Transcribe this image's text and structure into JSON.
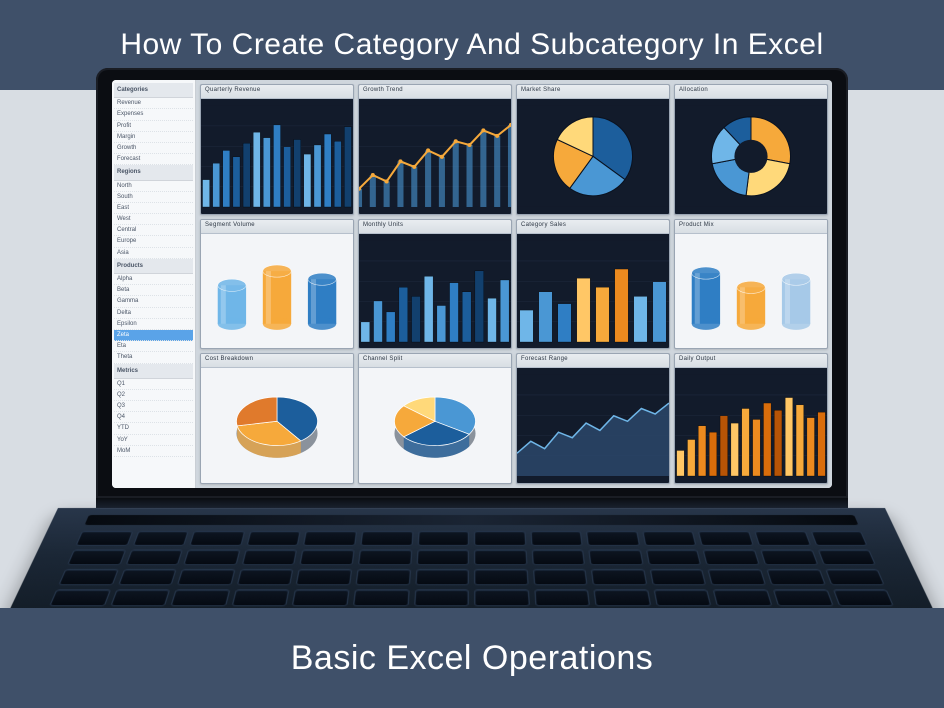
{
  "banner": {
    "top_text": "How To Create Category And Subcategory In Excel",
    "bottom_text": "Basic Excel Operations",
    "bg_color": "#3f5069",
    "text_color": "#ffffff"
  },
  "page_bg": "#d8dde3",
  "sidebar": {
    "sections": [
      {
        "header": "Categories",
        "rows": [
          "Revenue",
          "Expenses",
          "Profit",
          "Margin",
          "Growth",
          "Forecast"
        ]
      },
      {
        "header": "Regions",
        "rows": [
          "North",
          "South",
          "East",
          "West",
          "Central",
          "Europe",
          "Asia"
        ]
      },
      {
        "header": "Products",
        "rows": [
          "Alpha",
          "Beta",
          "Gamma",
          "Delta",
          "Epsilon",
          "Zeta",
          "Eta",
          "Theta"
        ]
      },
      {
        "header": "Metrics",
        "rows": [
          "Q1",
          "Q2",
          "Q3",
          "Q4",
          "YTD",
          "YoY",
          "MoM"
        ]
      }
    ],
    "selected_index": 18,
    "bg": "#f6f8fa",
    "header_bg": "#e4e8ed",
    "selected_bg": "#5aa3e8"
  },
  "charts": {
    "grid_bg": "#cfd6dd",
    "panel_bg_dark": "#121b2b",
    "panel_bg_light": "#f3f5f8",
    "gridline": "#2c3a52",
    "gridline_light": "#d0d7df",
    "palette_blue": [
      "#6fb6e8",
      "#4a97d4",
      "#2f7ec4",
      "#1c5e9c",
      "#12406e"
    ],
    "palette_orange": [
      "#ffc766",
      "#f6a93b",
      "#ec8a1f",
      "#d96d0b",
      "#b75406"
    ],
    "panels": [
      {
        "title": "Quarterly Revenue",
        "type": "bar",
        "bg": "dark",
        "values": [
          30,
          48,
          62,
          55,
          70,
          82,
          76,
          90,
          66,
          74,
          58,
          68,
          80,
          72,
          88
        ],
        "palette": "blue"
      },
      {
        "title": "Growth Trend",
        "type": "line",
        "bg": "dark",
        "values": [
          20,
          35,
          28,
          50,
          44,
          62,
          55,
          72,
          68,
          84,
          78,
          90
        ],
        "line_color": "#f6a93b",
        "fill_color": "#4a97d4"
      },
      {
        "title": "Market Share",
        "type": "pie",
        "bg": "dark",
        "values": [
          35,
          25,
          22,
          18
        ],
        "colors": [
          "#1c5e9c",
          "#4a97d4",
          "#f6a93b",
          "#ffd97a"
        ]
      },
      {
        "title": "Allocation",
        "type": "donut",
        "bg": "dark",
        "values": [
          28,
          24,
          20,
          16,
          12
        ],
        "colors": [
          "#f6a93b",
          "#ffd97a",
          "#4a97d4",
          "#6fb6e8",
          "#1c5e9c"
        ]
      },
      {
        "title": "Segment Volume",
        "type": "cyl",
        "bg": "light",
        "count": 3,
        "colors": [
          "#6fb6e8",
          "#f6a93b",
          "#2f7ec4"
        ],
        "heights": [
          38,
          52,
          44
        ]
      },
      {
        "title": "Monthly Units",
        "type": "bar",
        "bg": "dark",
        "values": [
          22,
          45,
          33,
          60,
          50,
          72,
          40,
          65,
          55,
          78,
          48,
          68
        ],
        "palette": "blue"
      },
      {
        "title": "Category Sales",
        "type": "bar",
        "bg": "dark",
        "values": [
          35,
          55,
          42,
          70,
          60,
          80,
          50,
          66
        ],
        "palette": "blueorange"
      },
      {
        "title": "Product Mix",
        "type": "cyl",
        "bg": "light",
        "count": 3,
        "colors": [
          "#2f7ec4",
          "#f6a93b",
          "#a6c9e8"
        ],
        "heights": [
          50,
          36,
          44
        ]
      },
      {
        "title": "Cost Breakdown",
        "type": "pie3d",
        "bg": "light",
        "values": [
          40,
          32,
          28
        ],
        "colors": [
          "#1c5e9c",
          "#f6a93b",
          "#e07a2c"
        ]
      },
      {
        "title": "Channel Split",
        "type": "pie3d",
        "bg": "light",
        "values": [
          34,
          30,
          22,
          14
        ],
        "colors": [
          "#4a97d4",
          "#1c5e9c",
          "#f6a93b",
          "#ffd97a"
        ]
      },
      {
        "title": "Forecast Range",
        "type": "area",
        "bg": "dark",
        "values": [
          25,
          38,
          30,
          48,
          42,
          58,
          50,
          66,
          60,
          74,
          68,
          80
        ],
        "line_color": "#6fb6e8",
        "fill_color": "#2b476a"
      },
      {
        "title": "Daily Output",
        "type": "bar",
        "bg": "dark",
        "values": [
          28,
          40,
          55,
          48,
          66,
          58,
          74,
          62,
          80,
          72,
          86,
          78,
          64,
          70
        ],
        "palette": "orange"
      }
    ]
  },
  "keyboard": {
    "rows": 4,
    "cols": 14
  }
}
